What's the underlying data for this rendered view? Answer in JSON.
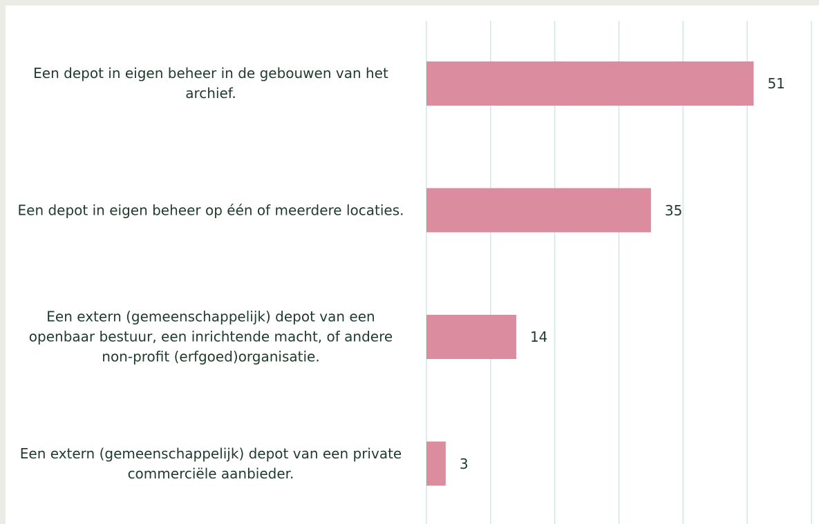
{
  "chart_data": {
    "type": "bar",
    "orientation": "horizontal",
    "categories": [
      "Een depot in eigen beheer in de gebouwen van het archief.",
      "Een depot in eigen beheer op één of meerdere locaties.",
      "Een extern (gemeenschappelijk) depot van een openbaar bestuur, een inrichtende macht, of andere non-profit (erfgoed)organisatie.",
      "Een extern (gemeenschappelijk) depot van een private commerciële aanbieder."
    ],
    "values": [
      51,
      35,
      14,
      3
    ],
    "color": "#db8c9f",
    "xlim": [
      0,
      60
    ],
    "xticks": [
      0,
      10,
      20,
      30,
      40,
      50,
      60
    ],
    "grid": true
  }
}
